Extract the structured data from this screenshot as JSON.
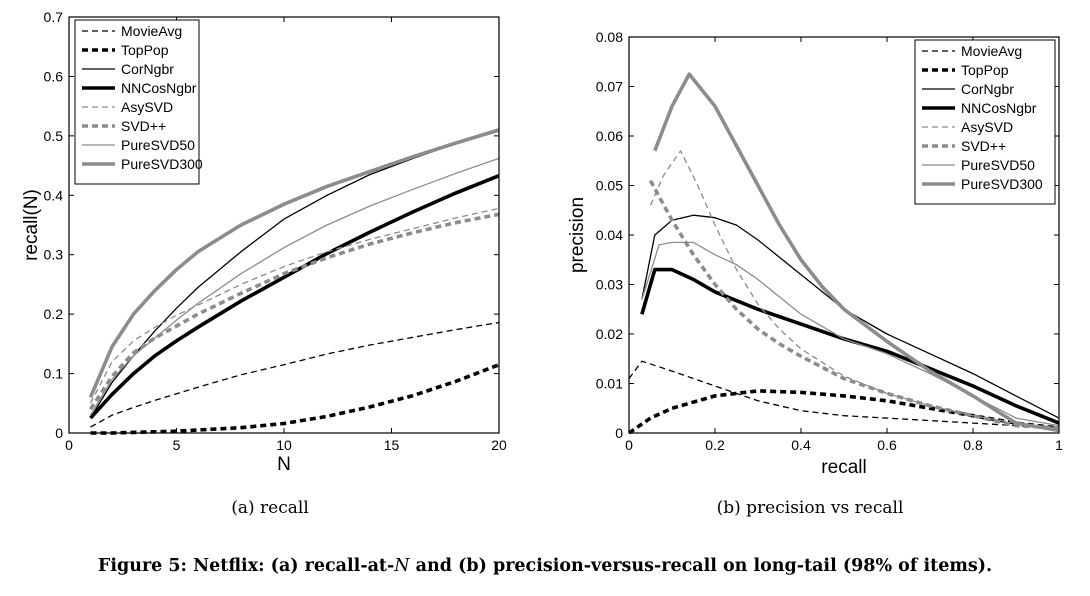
{
  "figure": {
    "caption_a": "(a) recall",
    "caption_b": "(b) precision vs recall",
    "caption_prefix": "Figure 5: Netflix: (a) recall-at-",
    "caption_var": "N",
    "caption_suffix": " and (b) precision-versus-recall on long-tail (98% of items)."
  },
  "styles": {
    "MovieAvg": {
      "color": "#000000",
      "dash": "6,4",
      "width": 1.3
    },
    "TopPop": {
      "color": "#000000",
      "dash": "6,4",
      "width": 3.6
    },
    "CorNgbr": {
      "color": "#000000",
      "dash": "",
      "width": 1.3
    },
    "NNCosNgbr": {
      "color": "#000000",
      "dash": "",
      "width": 3.6
    },
    "AsySVD": {
      "color": "#8c8c8c",
      "dash": "6,4",
      "width": 1.3
    },
    "SVD++": {
      "color": "#8c8c8c",
      "dash": "6,4",
      "width": 3.6
    },
    "PureSVD50": {
      "color": "#8c8c8c",
      "dash": "",
      "width": 1.3
    },
    "PureSVD300": {
      "color": "#8c8c8c",
      "dash": "",
      "width": 3.6
    }
  },
  "chart_data": [
    {
      "type": "line",
      "xlabel": "N",
      "ylabel": "recall(N)",
      "xlim": [
        0,
        20
      ],
      "ylim": [
        0,
        0.7
      ],
      "xticks": [
        0,
        5,
        10,
        15,
        20
      ],
      "yticks": [
        0,
        0.1,
        0.2,
        0.3,
        0.4,
        0.5,
        0.6,
        0.7
      ],
      "yticklabels": [
        "0",
        "0.1",
        "0.2",
        "0.3",
        "0.4",
        "0.5",
        "0.6",
        "0.7"
      ],
      "legend": "top-left",
      "series": [
        {
          "name": "MovieAvg",
          "x": [
            1,
            2,
            3,
            4,
            5,
            6,
            8,
            10,
            12,
            14,
            16,
            18,
            20
          ],
          "y": [
            0.01,
            0.03,
            0.043,
            0.055,
            0.066,
            0.077,
            0.098,
            0.115,
            0.133,
            0.148,
            0.161,
            0.174,
            0.186
          ]
        },
        {
          "name": "TopPop",
          "x": [
            1,
            2,
            3,
            4,
            5,
            6,
            8,
            10,
            12,
            14,
            16,
            18,
            20
          ],
          "y": [
            0,
            0,
            0.001,
            0.002,
            0.003,
            0.005,
            0.009,
            0.016,
            0.028,
            0.044,
            0.063,
            0.087,
            0.115
          ]
        },
        {
          "name": "CorNgbr",
          "x": [
            1,
            2,
            3,
            4,
            5,
            6,
            8,
            10,
            12,
            14,
            16,
            18,
            20
          ],
          "y": [
            0.025,
            0.085,
            0.13,
            0.172,
            0.21,
            0.245,
            0.305,
            0.36,
            0.4,
            0.435,
            0.462,
            0.487,
            0.508
          ]
        },
        {
          "name": "NNCosNgbr",
          "x": [
            1,
            2,
            3,
            4,
            5,
            6,
            8,
            10,
            12,
            14,
            16,
            18,
            20
          ],
          "y": [
            0.025,
            0.065,
            0.1,
            0.13,
            0.155,
            0.178,
            0.222,
            0.262,
            0.302,
            0.338,
            0.372,
            0.404,
            0.433
          ]
        },
        {
          "name": "AsySVD",
          "x": [
            1,
            2,
            3,
            4,
            5,
            6,
            8,
            10,
            12,
            14,
            16,
            18,
            20
          ],
          "y": [
            0.05,
            0.12,
            0.155,
            0.178,
            0.198,
            0.215,
            0.25,
            0.28,
            0.305,
            0.326,
            0.344,
            0.362,
            0.378
          ]
        },
        {
          "name": "SVD++",
          "x": [
            1,
            2,
            3,
            4,
            5,
            6,
            8,
            10,
            12,
            14,
            16,
            18,
            20
          ],
          "y": [
            0.04,
            0.095,
            0.135,
            0.16,
            0.18,
            0.2,
            0.235,
            0.268,
            0.295,
            0.318,
            0.337,
            0.354,
            0.368
          ]
        },
        {
          "name": "PureSVD50",
          "x": [
            1,
            2,
            3,
            4,
            5,
            6,
            8,
            10,
            12,
            14,
            16,
            18,
            20
          ],
          "y": [
            0.03,
            0.09,
            0.13,
            0.16,
            0.19,
            0.218,
            0.268,
            0.312,
            0.35,
            0.382,
            0.41,
            0.437,
            0.462
          ]
        },
        {
          "name": "PureSVD300",
          "x": [
            1,
            2,
            3,
            4,
            5,
            6,
            8,
            10,
            12,
            14,
            16,
            18,
            20
          ],
          "y": [
            0.06,
            0.145,
            0.2,
            0.24,
            0.275,
            0.305,
            0.35,
            0.385,
            0.415,
            0.44,
            0.465,
            0.488,
            0.51
          ]
        }
      ]
    },
    {
      "type": "line",
      "xlabel": "recall",
      "ylabel": "precision",
      "xlim": [
        0,
        1
      ],
      "ylim": [
        0,
        0.08
      ],
      "xticks": [
        0,
        0.2,
        0.4,
        0.6,
        0.8,
        1
      ],
      "xticklabels": [
        "0",
        "0.2",
        "0.4",
        "0.6",
        "0.8",
        "1"
      ],
      "yticks": [
        0,
        0.01,
        0.02,
        0.03,
        0.04,
        0.05,
        0.06,
        0.07,
        0.08
      ],
      "yticklabels": [
        "0",
        "0.01",
        "0.02",
        "0.03",
        "0.04",
        "0.05",
        "0.06",
        "0.07",
        "0.08"
      ],
      "legend": "top-right",
      "series": [
        {
          "name": "MovieAvg",
          "x": [
            0,
            0.03,
            0.1,
            0.2,
            0.3,
            0.4,
            0.5,
            0.6,
            0.7,
            0.8,
            0.9,
            1.0
          ],
          "y": [
            0.011,
            0.0145,
            0.0125,
            0.0095,
            0.0065,
            0.0045,
            0.0035,
            0.003,
            0.0025,
            0.002,
            0.0015,
            0.001
          ]
        },
        {
          "name": "TopPop",
          "x": [
            0,
            0.05,
            0.1,
            0.2,
            0.3,
            0.4,
            0.5,
            0.6,
            0.7,
            0.8,
            0.9,
            1.0
          ],
          "y": [
            0,
            0.003,
            0.005,
            0.0075,
            0.0085,
            0.0082,
            0.0075,
            0.0065,
            0.005,
            0.0035,
            0.002,
            0.001
          ]
        },
        {
          "name": "CorNgbr",
          "x": [
            0.03,
            0.06,
            0.1,
            0.15,
            0.2,
            0.25,
            0.3,
            0.4,
            0.5,
            0.6,
            0.7,
            0.8,
            0.9,
            1.0
          ],
          "y": [
            0.027,
            0.04,
            0.043,
            0.044,
            0.0435,
            0.042,
            0.039,
            0.032,
            0.025,
            0.02,
            0.016,
            0.012,
            0.0075,
            0.003
          ]
        },
        {
          "name": "NNCosNgbr",
          "x": [
            0.03,
            0.06,
            0.1,
            0.15,
            0.2,
            0.3,
            0.4,
            0.5,
            0.6,
            0.7,
            0.8,
            0.9,
            1.0
          ],
          "y": [
            0.024,
            0.033,
            0.033,
            0.031,
            0.0285,
            0.025,
            0.022,
            0.019,
            0.0165,
            0.013,
            0.0095,
            0.0055,
            0.002
          ]
        },
        {
          "name": "AsySVD",
          "x": [
            0.05,
            0.08,
            0.12,
            0.16,
            0.2,
            0.25,
            0.3,
            0.35,
            0.4,
            0.5,
            0.6,
            0.7,
            0.8,
            0.9,
            1.0
          ],
          "y": [
            0.046,
            0.052,
            0.057,
            0.05,
            0.042,
            0.033,
            0.026,
            0.021,
            0.017,
            0.0115,
            0.008,
            0.0055,
            0.0035,
            0.002,
            0.001
          ]
        },
        {
          "name": "SVD++",
          "x": [
            0.05,
            0.1,
            0.15,
            0.2,
            0.25,
            0.3,
            0.35,
            0.4,
            0.5,
            0.6,
            0.7,
            0.8,
            0.9,
            1.0
          ],
          "y": [
            0.051,
            0.043,
            0.036,
            0.03,
            0.025,
            0.021,
            0.018,
            0.0155,
            0.011,
            0.008,
            0.0055,
            0.0035,
            0.0015,
            0.001
          ]
        },
        {
          "name": "PureSVD50",
          "x": [
            0.03,
            0.07,
            0.1,
            0.15,
            0.2,
            0.25,
            0.3,
            0.35,
            0.4,
            0.5,
            0.6,
            0.7,
            0.8,
            0.9,
            1.0
          ],
          "y": [
            0.027,
            0.038,
            0.0385,
            0.0385,
            0.036,
            0.034,
            0.031,
            0.0275,
            0.024,
            0.019,
            0.016,
            0.012,
            0.0075,
            0.003,
            0.0015
          ]
        },
        {
          "name": "PureSVD300",
          "x": [
            0.06,
            0.1,
            0.14,
            0.2,
            0.25,
            0.3,
            0.35,
            0.4,
            0.45,
            0.5,
            0.6,
            0.7,
            0.8,
            0.9,
            1.0
          ],
          "y": [
            0.057,
            0.066,
            0.0725,
            0.066,
            0.058,
            0.05,
            0.042,
            0.035,
            0.0295,
            0.025,
            0.0185,
            0.0125,
            0.0075,
            0.002,
            0.0005
          ]
        }
      ]
    }
  ]
}
